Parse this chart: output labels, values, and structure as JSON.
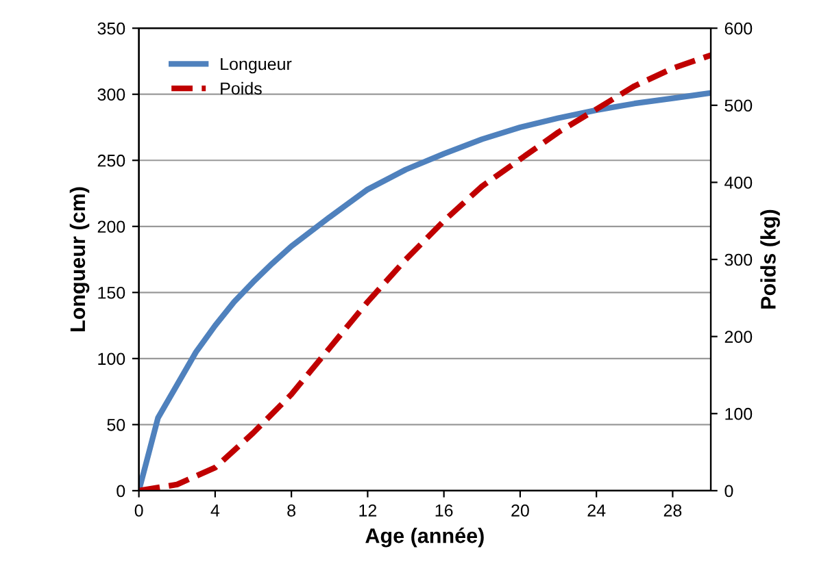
{
  "chart_data": {
    "type": "line",
    "xlabel": "Age (année)",
    "ylabel": "Longueur (cm)",
    "y2label": "Poids (kg)",
    "xlim": [
      0,
      30
    ],
    "xticks": [
      0,
      4,
      8,
      12,
      16,
      20,
      24,
      28
    ],
    "ylim": [
      0,
      350
    ],
    "yticks": [
      0,
      50,
      100,
      150,
      200,
      250,
      300,
      350
    ],
    "y2lim": [
      0,
      600
    ],
    "y2ticks": [
      0,
      100,
      200,
      300,
      400,
      500,
      600
    ],
    "grid": "y",
    "legend": "top left",
    "marker": "none",
    "series": [
      {
        "name": "Longueur",
        "color": "#4f81bd",
        "line_style": "solid",
        "x": [
          0,
          1,
          2,
          3,
          4,
          5,
          6,
          7,
          8,
          10,
          12,
          14,
          16,
          18,
          20,
          22,
          24,
          26,
          28,
          30
        ],
        "values": [
          0,
          55,
          80,
          105,
          125,
          143,
          158,
          172,
          185,
          207,
          228,
          243,
          255,
          266,
          275,
          282,
          288,
          293,
          297,
          301
        ]
      },
      {
        "name": "Poids",
        "color": "#c00000",
        "line_style": "dashed",
        "axis": "y2",
        "x": [
          0,
          2,
          4,
          6,
          8,
          10,
          12,
          14,
          16,
          18,
          20,
          22,
          24,
          26,
          28,
          30
        ],
        "values": [
          0,
          8,
          30,
          75,
          125,
          185,
          245,
          300,
          350,
          395,
          430,
          465,
          495,
          525,
          548,
          565
        ]
      }
    ]
  }
}
